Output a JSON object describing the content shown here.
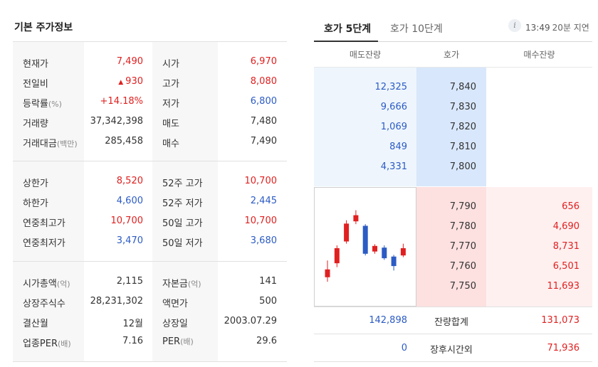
{
  "basic": {
    "title": "기본 주가정보",
    "groups": [
      [
        {
          "k1": "현재가",
          "u1": "",
          "v1": "7,490",
          "c1": "red",
          "tri1": "",
          "k2": "시가",
          "u2": "",
          "v2": "6,970",
          "c2": "red"
        },
        {
          "k1": "전일비",
          "u1": "",
          "v1": "930",
          "c1": "red",
          "tri1": "▲",
          "k2": "고가",
          "u2": "",
          "v2": "8,080",
          "c2": "red"
        },
        {
          "k1": "등락률",
          "u1": "(%)",
          "v1": "+14.18%",
          "c1": "red",
          "tri1": "",
          "k2": "저가",
          "u2": "",
          "v2": "6,800",
          "c2": "blue"
        },
        {
          "k1": "거래량",
          "u1": "",
          "v1": "37,342,398",
          "c1": "dark",
          "tri1": "",
          "k2": "매도",
          "u2": "",
          "v2": "7,480",
          "c2": "dark"
        },
        {
          "k1": "거래대금",
          "u1": "(백만)",
          "v1": "285,458",
          "c1": "dark",
          "tri1": "",
          "k2": "매수",
          "u2": "",
          "v2": "7,490",
          "c2": "dark"
        }
      ],
      [
        {
          "k1": "상한가",
          "u1": "",
          "v1": "8,520",
          "c1": "red",
          "tri1": "",
          "k2": "52주 고가",
          "u2": "",
          "v2": "10,700",
          "c2": "red"
        },
        {
          "k1": "하한가",
          "u1": "",
          "v1": "4,600",
          "c1": "blue",
          "tri1": "",
          "k2": "52주 저가",
          "u2": "",
          "v2": "2,445",
          "c2": "blue"
        },
        {
          "k1": "연중최고가",
          "u1": "",
          "v1": "10,700",
          "c1": "red",
          "tri1": "",
          "k2": "50일 고가",
          "u2": "",
          "v2": "10,700",
          "c2": "red"
        },
        {
          "k1": "연중최저가",
          "u1": "",
          "v1": "3,470",
          "c1": "blue",
          "tri1": "",
          "k2": "50일 저가",
          "u2": "",
          "v2": "3,680",
          "c2": "blue"
        }
      ],
      [
        {
          "k1": "시가총액",
          "u1": "(억)",
          "v1": "2,115",
          "c1": "dark",
          "tri1": "",
          "k2": "자본금",
          "u2": "(억)",
          "v2": "141",
          "c2": "dark"
        },
        {
          "k1": "상장주식수",
          "u1": "",
          "v1": "28,231,302",
          "c1": "dark",
          "tri1": "",
          "k2": "액면가",
          "u2": "",
          "v2": "500",
          "c2": "dark"
        },
        {
          "k1": "결산월",
          "u1": "",
          "v1": "12월",
          "c1": "dark",
          "tri1": "",
          "k2": "상장일",
          "u2": "",
          "v2": "2003.07.29",
          "c2": "dark"
        },
        {
          "k1": "업종PER",
          "u1": "(배)",
          "v1": "7.16",
          "c1": "dark",
          "tri1": "",
          "k2": "PER",
          "u2": "(배)",
          "v2": "29.6",
          "c2": "dark"
        }
      ]
    ]
  },
  "orderbook": {
    "tabs": [
      {
        "label": "호가 5단계",
        "active": true
      },
      {
        "label": "호가 10단계",
        "active": false
      }
    ],
    "info_icon_glyph": "i",
    "time": "13:49",
    "delay": "20분 지연",
    "headers": {
      "ask": "매도잔량",
      "price": "호가",
      "bid": "매수잔량"
    },
    "asks": [
      {
        "qty": "12,325",
        "price": "7,840"
      },
      {
        "qty": "9,666",
        "price": "7,830"
      },
      {
        "qty": "1,069",
        "price": "7,820"
      },
      {
        "qty": "849",
        "price": "7,810"
      },
      {
        "qty": "4,331",
        "price": "7,800"
      }
    ],
    "bids": [
      {
        "qty": "656",
        "price": "7,790"
      },
      {
        "qty": "4,690",
        "price": "7,780"
      },
      {
        "qty": "8,731",
        "price": "7,770"
      },
      {
        "qty": "6,501",
        "price": "7,760"
      },
      {
        "qty": "11,693",
        "price": "7,750"
      }
    ],
    "total": {
      "label": "잔량합계",
      "ask": "142,898",
      "bid": "131,073"
    },
    "after_hours": {
      "label": "장후시간외",
      "ask": "0",
      "bid": "71,936"
    },
    "colors": {
      "up": "#e02020",
      "down": "#2c5bc4"
    },
    "mini_chart": [
      {
        "open": 7020,
        "close": 6880,
        "high": 7180,
        "low": 6800,
        "dir": "up"
      },
      {
        "open": 7130,
        "close": 7400,
        "high": 7450,
        "low": 7060,
        "dir": "up"
      },
      {
        "open": 7520,
        "close": 7840,
        "high": 7900,
        "low": 7480,
        "dir": "up"
      },
      {
        "open": 7880,
        "close": 7990,
        "high": 8080,
        "low": 7830,
        "dir": "up"
      },
      {
        "open": 7800,
        "close": 7300,
        "high": 7830,
        "low": 7270,
        "dir": "down"
      },
      {
        "open": 7340,
        "close": 7440,
        "high": 7470,
        "low": 7300,
        "dir": "up"
      },
      {
        "open": 7410,
        "close": 7220,
        "high": 7450,
        "low": 7190,
        "dir": "down"
      },
      {
        "open": 7250,
        "close": 7080,
        "high": 7280,
        "low": 7000,
        "dir": "down"
      },
      {
        "open": 7270,
        "close": 7400,
        "high": 7480,
        "low": 7240,
        "dir": "up"
      }
    ]
  }
}
